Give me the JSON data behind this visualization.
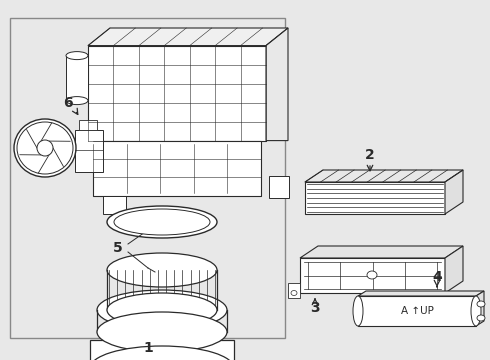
{
  "bg": "#e8e8e8",
  "white": "#ffffff",
  "lc": "#2a2a2a",
  "gray": "#aaaaaa",
  "light_gray": "#d0d0d0",
  "fig_w": 4.9,
  "fig_h": 3.6,
  "dpi": 100
}
